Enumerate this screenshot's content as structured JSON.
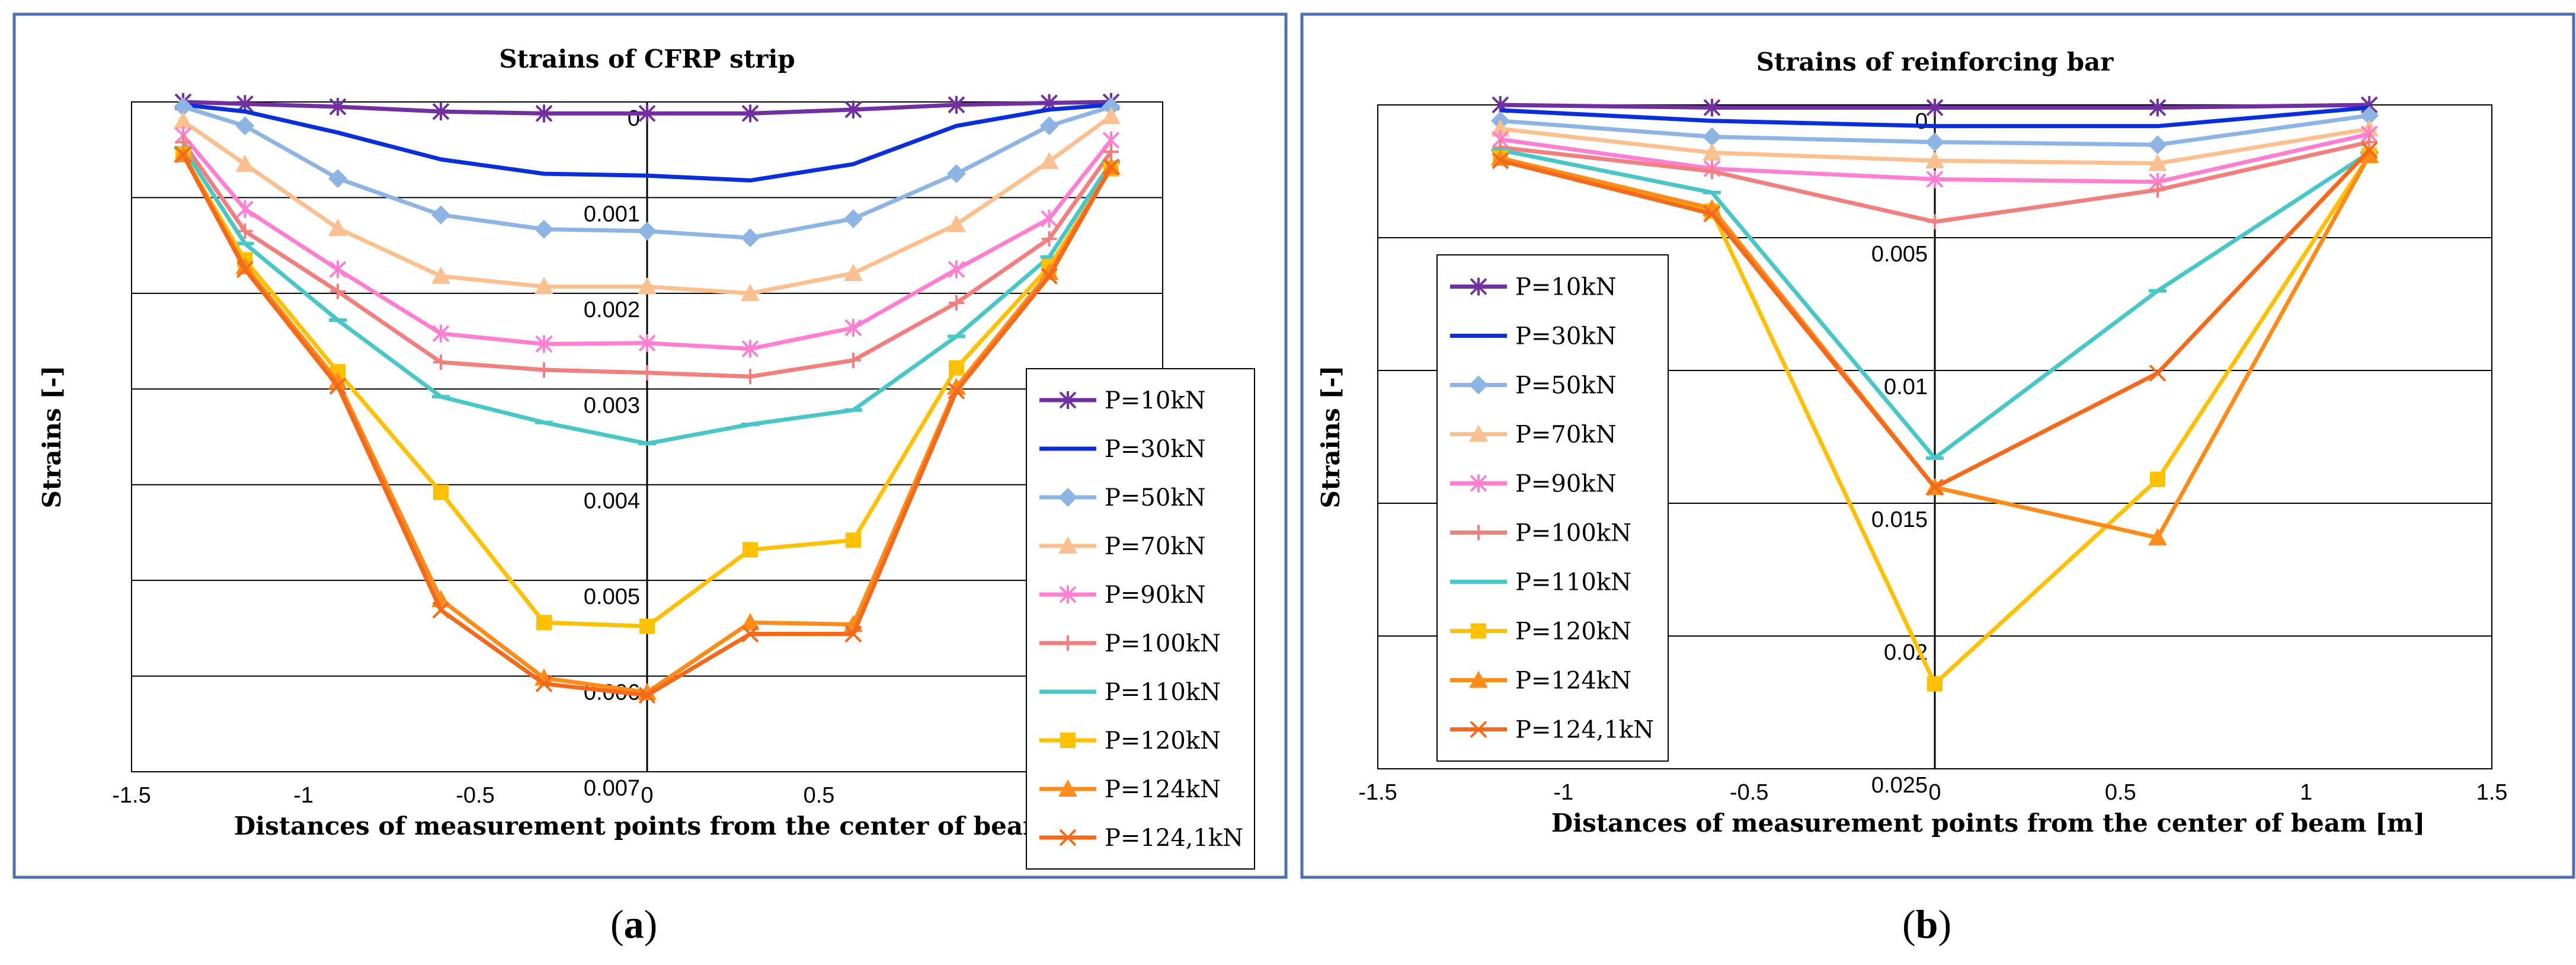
{
  "chart_data": [
    {
      "type": "line",
      "panel_label": "a",
      "title": "Strains of CFRP strip",
      "xlabel": "Distances of measurement points from the center of beam [m]",
      "ylabel": "Strains [-]",
      "xlim": [
        -1.5,
        1.5
      ],
      "ylim": [
        0,
        0.007
      ],
      "y_inverted": true,
      "x_tick_labels": [
        "-1.5",
        "-1",
        "-0.5",
        "0",
        "0.5"
      ],
      "y_tick_labels": [
        "0",
        "0.001",
        "0.002",
        "0.003",
        "0.004",
        "0.005",
        "0.006",
        "0.007"
      ],
      "legend_position": "right",
      "x": [
        -1.35,
        -1.17,
        -0.9,
        -0.6,
        -0.3,
        0,
        0.3,
        0.6,
        0.9,
        1.17,
        1.35
      ],
      "series": [
        {
          "name": "P=10kN",
          "color": "#7030A0",
          "marker": "asterisk",
          "values": [
            0,
            2e-05,
            5e-05,
            0.0001,
            0.00012,
            0.00012,
            0.00012,
            8e-05,
            3e-05,
            1e-05,
            0
          ]
        },
        {
          "name": "P=30kN",
          "color": "#0A2ED8",
          "marker": "none",
          "values": [
            3e-05,
            0.0001,
            0.00032,
            0.0006,
            0.00075,
            0.00077,
            0.00082,
            0.00065,
            0.00025,
            8e-05,
            3e-05
          ]
        },
        {
          "name": "P=50kN",
          "color": "#8DB4E2",
          "marker": "diamond",
          "values": [
            5e-05,
            0.00025,
            0.0008,
            0.00118,
            0.00133,
            0.00135,
            0.00142,
            0.00122,
            0.00075,
            0.00025,
            5e-05
          ]
        },
        {
          "name": "P=70kN",
          "color": "#FAC090",
          "marker": "triangle",
          "values": [
            0.0002,
            0.00065,
            0.00132,
            0.00182,
            0.00193,
            0.00193,
            0.002,
            0.00179,
            0.00128,
            0.00062,
            0.00015
          ]
        },
        {
          "name": "P=90kN",
          "color": "#FF80D0",
          "marker": "asterisk",
          "values": [
            0.00035,
            0.00112,
            0.00175,
            0.00242,
            0.00253,
            0.00252,
            0.00258,
            0.00236,
            0.00175,
            0.00122,
            0.0004
          ]
        },
        {
          "name": "P=100kN",
          "color": "#F08080",
          "marker": "plus",
          "values": [
            0.00042,
            0.00135,
            0.00198,
            0.00272,
            0.0028,
            0.00283,
            0.00287,
            0.0027,
            0.0021,
            0.00143,
            0.00052
          ]
        },
        {
          "name": "P=110kN",
          "color": "#4BC6C6",
          "marker": "dash",
          "values": [
            0.00048,
            0.00148,
            0.00228,
            0.00308,
            0.00335,
            0.00357,
            0.00337,
            0.00322,
            0.00245,
            0.00162,
            0.00063
          ]
        },
        {
          "name": "P=120kN",
          "color": "#FFC000",
          "marker": "square",
          "values": [
            0.00055,
            0.00165,
            0.00282,
            0.00408,
            0.00544,
            0.00548,
            0.00468,
            0.00458,
            0.00278,
            0.00172,
            0.0007
          ]
        },
        {
          "name": "P=124kN",
          "color": "#FF8C1A",
          "marker": "triangle",
          "values": [
            0.00055,
            0.00172,
            0.00292,
            0.0052,
            0.00602,
            0.00617,
            0.00544,
            0.00546,
            0.00298,
            0.00178,
            0.00068
          ]
        },
        {
          "name": "P=124,1kN",
          "color": "#F36A1C",
          "marker": "x",
          "values": [
            0.00055,
            0.00175,
            0.00297,
            0.00531,
            0.00608,
            0.0062,
            0.00556,
            0.00556,
            0.00302,
            0.00182,
            0.00068
          ]
        }
      ]
    },
    {
      "type": "line",
      "panel_label": "b",
      "title": "Strains of reinforcing bar",
      "xlabel": "Distances of measurement points from the center of beam [m]",
      "ylabel": "Strains [-]",
      "xlim": [
        -1.5,
        1.5
      ],
      "ylim": [
        0,
        0.025
      ],
      "y_inverted": true,
      "x_tick_labels": [
        "-1.5",
        "-1",
        "-0.5",
        "0",
        "0.5",
        "1",
        "1.5"
      ],
      "y_tick_labels": [
        "0",
        "0.005",
        "0.01",
        "0.015",
        "0.02",
        "0.025"
      ],
      "legend_position": "left",
      "x": [
        -1.17,
        -0.6,
        0,
        0.6,
        1.17
      ],
      "series": [
        {
          "name": "P=10kN",
          "color": "#7030A0",
          "marker": "asterisk",
          "values": [
            0,
            0.0001,
            0.0001,
            0.0001,
            0
          ]
        },
        {
          "name": "P=30kN",
          "color": "#0A2ED8",
          "marker": "none",
          "values": [
            0.0002,
            0.0006,
            0.0008,
            0.0008,
            0.0001
          ]
        },
        {
          "name": "P=50kN",
          "color": "#8DB4E2",
          "marker": "diamond",
          "values": [
            0.0006,
            0.0012,
            0.0014,
            0.0015,
            0.0004
          ]
        },
        {
          "name": "P=70kN",
          "color": "#FAC090",
          "marker": "triangle",
          "values": [
            0.0009,
            0.0018,
            0.0021,
            0.0022,
            0.0009
          ]
        },
        {
          "name": "P=90kN",
          "color": "#FF80D0",
          "marker": "asterisk",
          "values": [
            0.0013,
            0.0024,
            0.0028,
            0.0029,
            0.0011
          ]
        },
        {
          "name": "P=100kN",
          "color": "#F08080",
          "marker": "plus",
          "values": [
            0.0016,
            0.0025,
            0.0044,
            0.0032,
            0.0014
          ]
        },
        {
          "name": "P=110kN",
          "color": "#4BC6C6",
          "marker": "dash",
          "values": [
            0.0017,
            0.0033,
            0.0133,
            0.007,
            0.0018
          ]
        },
        {
          "name": "P=120kN",
          "color": "#FFC000",
          "marker": "square",
          "values": [
            0.002,
            0.004,
            0.0218,
            0.0141,
            0.0019
          ]
        },
        {
          "name": "P=124kN",
          "color": "#FF8C1A",
          "marker": "triangle",
          "values": [
            0.002,
            0.0039,
            0.0144,
            0.0163,
            0.0019
          ]
        },
        {
          "name": "P=124,1kN",
          "color": "#F36A1C",
          "marker": "x",
          "values": [
            0.0021,
            0.0041,
            0.0144,
            0.0101,
            0.0017
          ]
        }
      ]
    }
  ],
  "captions": {
    "a_open": "(",
    "a_letter": "a",
    "a_close": ")",
    "b_open": "(",
    "b_letter": "b",
    "b_close": ")"
  },
  "colors": {
    "frame": "#4F6FB0",
    "grid": "#000000"
  }
}
